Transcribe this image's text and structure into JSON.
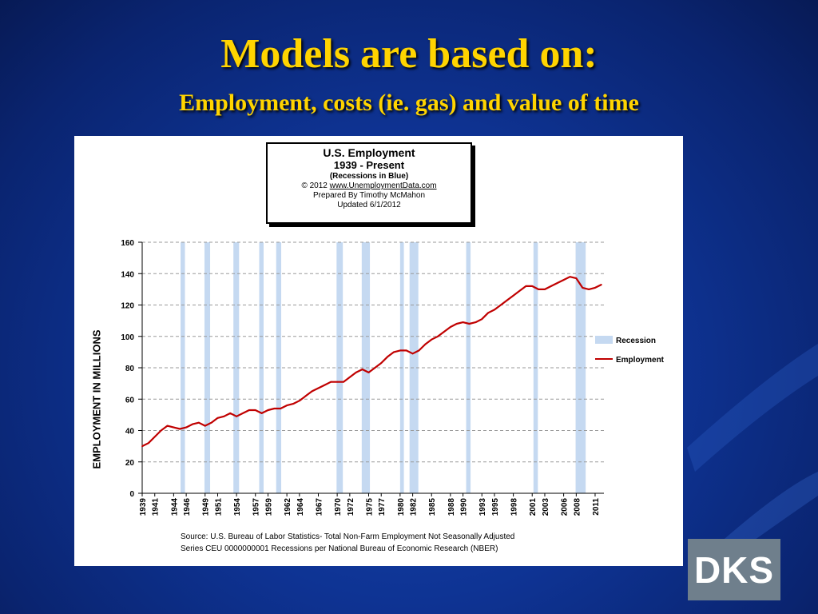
{
  "slide": {
    "title": "Models are based on:",
    "subtitle": "Employment, costs (ie. gas) and value of time",
    "logo_text": "DKS"
  },
  "chart_info": {
    "line1": "U.S. Employment",
    "line2": "1939 - Present",
    "line3": "(Recessions  in Blue)",
    "copyright": "© 2012",
    "url": "www.UnemploymentData.com",
    "prepared": "Prepared  By Timothy McMahon",
    "updated": "Updated  6/1/2012"
  },
  "source": {
    "line1": "Source: U.S.  Bureau of Labor Statistics-  Total Non-Farm Employment Not Seasonally Adjusted",
    "line2": "Series CEU 0000000001    Recessions per National Bureau of Economic Research (NBER)"
  },
  "colors": {
    "employment_line": "#c00000",
    "recession_band": "#c5d9f1",
    "title": "#ffd400"
  },
  "chart_data": {
    "type": "line",
    "ylabel": "EMPLOYMENT IN MILLIONS",
    "xlabel": "",
    "ylim": [
      0,
      160
    ],
    "xlim": [
      1939,
      2012.4
    ],
    "yticks": [
      0,
      20,
      40,
      60,
      80,
      100,
      120,
      140,
      160
    ],
    "xticks": [
      "1939",
      "1941",
      "1944",
      "1946",
      "1949",
      "1951",
      "1954",
      "1957",
      "1959",
      "1962",
      "1964",
      "1967",
      "1970",
      "1972",
      "1975",
      "1977",
      "1980",
      "1982",
      "1985",
      "1988",
      "1990",
      "1993",
      "1995",
      "1998",
      "2001",
      "2003",
      "2006",
      "2008",
      "2011"
    ],
    "grid": "horizontal-dashed",
    "legend_placement": "right",
    "legend": [
      {
        "name": "Recession",
        "kind": "band"
      },
      {
        "name": "Employment",
        "kind": "line"
      }
    ],
    "recessions": [
      [
        1945.1,
        1945.8
      ],
      [
        1948.9,
        1949.8
      ],
      [
        1953.5,
        1954.4
      ],
      [
        1957.6,
        1958.3
      ],
      [
        1960.3,
        1961.1
      ],
      [
        1969.9,
        1970.9
      ],
      [
        1973.9,
        1975.2
      ],
      [
        1980.0,
        1980.6
      ],
      [
        1981.5,
        1982.9
      ],
      [
        1990.5,
        1991.2
      ],
      [
        2001.2,
        2001.9
      ],
      [
        2007.9,
        2009.5
      ]
    ],
    "series": [
      {
        "name": "Employment",
        "x": [
          1939,
          1940,
          1941,
          1942,
          1943,
          1944,
          1945,
          1946,
          1947,
          1948,
          1949,
          1950,
          1951,
          1952,
          1953,
          1954,
          1955,
          1956,
          1957,
          1958,
          1959,
          1960,
          1961,
          1962,
          1963,
          1964,
          1965,
          1966,
          1967,
          1968,
          1969,
          1970,
          1971,
          1972,
          1973,
          1974,
          1975,
          1976,
          1977,
          1978,
          1979,
          1980,
          1981,
          1982,
          1983,
          1984,
          1985,
          1986,
          1987,
          1988,
          1989,
          1990,
          1991,
          1992,
          1993,
          1994,
          1995,
          1996,
          1997,
          1998,
          1999,
          2000,
          2001,
          2002,
          2003,
          2004,
          2005,
          2006,
          2007,
          2008,
          2009,
          2010,
          2011,
          2012
        ],
        "values": [
          30,
          32,
          36,
          40,
          43,
          42,
          41,
          42,
          44,
          45,
          43,
          45,
          48,
          49,
          51,
          49,
          51,
          53,
          53,
          51,
          53,
          54,
          54,
          56,
          57,
          59,
          62,
          65,
          67,
          69,
          71,
          71,
          71,
          74,
          77,
          79,
          77,
          80,
          83,
          87,
          90,
          91,
          91,
          89,
          91,
          95,
          98,
          100,
          103,
          106,
          108,
          109,
          108,
          109,
          111,
          115,
          117,
          120,
          123,
          126,
          129,
          132,
          132,
          130,
          130,
          132,
          134,
          136,
          138,
          137,
          131,
          130,
          131,
          133
        ]
      }
    ]
  }
}
